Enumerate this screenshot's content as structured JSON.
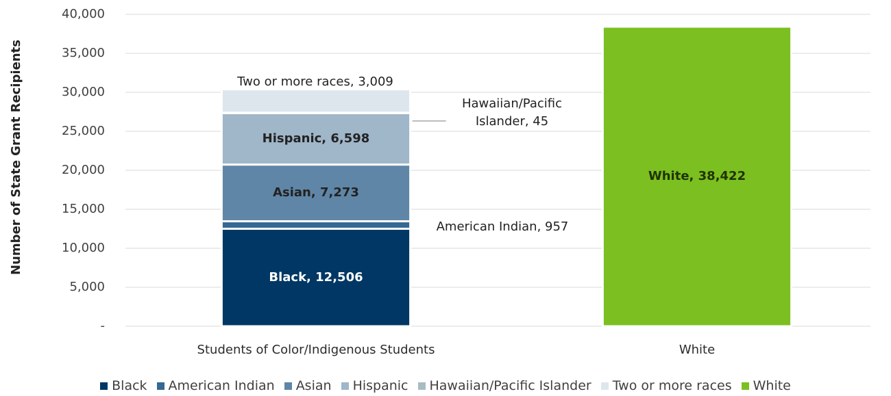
{
  "chart_data": {
    "type": "stacked_bar",
    "y_label": "Number of State Grant Recipients",
    "categories": [
      "Students of Color/Indigenous Students",
      "White"
    ],
    "series": [
      {
        "name": "Black",
        "color": "#003764",
        "values": [
          12506,
          null
        ],
        "value_labels": [
          "Black, 12,506",
          null
        ]
      },
      {
        "name": "American Indian",
        "color": "#356892",
        "values": [
          957,
          null
        ],
        "value_labels": [
          "American Indian, 957",
          null
        ]
      },
      {
        "name": "Asian",
        "color": "#5f86a6",
        "values": [
          7273,
          null
        ],
        "value_labels": [
          "Asian, 7,273",
          null
        ]
      },
      {
        "name": "Hispanic",
        "color": "#a0b6c9",
        "values": [
          6598,
          null
        ],
        "value_labels": [
          "Hispanic, 6,598",
          null
        ]
      },
      {
        "name": "Hawaiian/Pacific Islander",
        "color": "#a9bcc3",
        "values": [
          45,
          null
        ],
        "value_labels": [
          "Hawaiian/Pacific Islander, 45",
          null
        ]
      },
      {
        "name": "Two or more races",
        "color": "#dee6ed",
        "values": [
          3009,
          null
        ],
        "value_labels": [
          "Two or more races, 3,009",
          null
        ]
      },
      {
        "name": "White",
        "color": "#7bbf21",
        "values": [
          null,
          38422
        ],
        "value_labels": [
          null,
          "White, 38,422"
        ]
      }
    ],
    "ylim": [
      0,
      40000
    ],
    "yticks": [
      {
        "value": 0,
        "label": "-"
      },
      {
        "value": 5000,
        "label": "5,000"
      },
      {
        "value": 10000,
        "label": "10,000"
      },
      {
        "value": 15000,
        "label": "15,000"
      },
      {
        "value": 20000,
        "label": "20,000"
      },
      {
        "value": 25000,
        "label": "25,000"
      },
      {
        "value": 30000,
        "label": "30,000"
      },
      {
        "value": 35000,
        "label": "35,000"
      },
      {
        "value": 40000,
        "label": "40,000"
      }
    ],
    "grid": true,
    "legend": "bottom"
  }
}
